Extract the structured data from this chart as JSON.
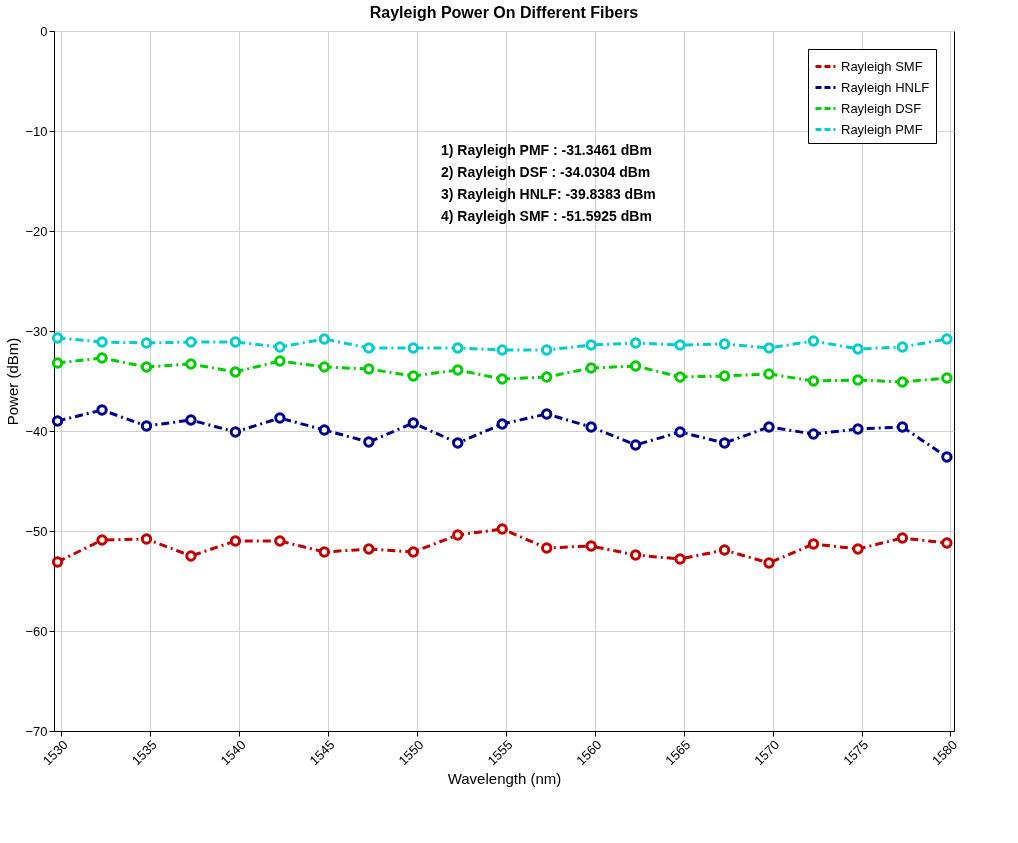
{
  "chart_data": {
    "type": "line",
    "title": "Rayleigh Power On Different Fibers",
    "xlabel": "Wavelength (nm)",
    "ylabel": "Power (dBm)",
    "x": [
      1529.8,
      1532.3,
      1534.8,
      1537.3,
      1539.8,
      1542.3,
      1544.8,
      1547.3,
      1549.8,
      1552.3,
      1554.8,
      1557.3,
      1559.8,
      1562.3,
      1564.8,
      1567.3,
      1569.8,
      1572.3,
      1574.8,
      1577.3,
      1579.8
    ],
    "xlim": [
      1529.6,
      1580.2
    ],
    "xticks": [
      1530,
      1535,
      1540,
      1545,
      1550,
      1555,
      1560,
      1565,
      1570,
      1575,
      1580
    ],
    "ylim": [
      -70,
      0
    ],
    "yticks": [
      -70,
      -60,
      -50,
      -40,
      -30,
      -20,
      -10,
      0
    ],
    "grid": true,
    "legend": "top right",
    "marker": "circle",
    "line_style": "dashed",
    "series": [
      {
        "name": "Rayleigh SMF",
        "color": "#c00000",
        "values": [
          -53.1,
          -50.9,
          -50.8,
          -52.5,
          -51.0,
          -51.0,
          -52.1,
          -51.8,
          -52.1,
          -50.4,
          -49.8,
          -51.7,
          -51.5,
          -52.4,
          -52.8,
          -51.9,
          -53.2,
          -51.3,
          -51.8,
          -50.7,
          -51.2
        ]
      },
      {
        "name": "Rayleigh HNLF",
        "color": "#00008b",
        "values": [
          -39.0,
          -37.9,
          -39.5,
          -38.9,
          -40.1,
          -38.7,
          -39.9,
          -41.1,
          -39.2,
          -41.2,
          -39.3,
          -38.3,
          -39.6,
          -41.4,
          -40.1,
          -41.2,
          -39.6,
          -40.3,
          -39.8,
          -39.6,
          -42.6
        ]
      },
      {
        "name": "Rayleigh DSF",
        "color": "#00cc00",
        "values": [
          -33.2,
          -32.7,
          -33.6,
          -33.3,
          -34.1,
          -33.0,
          -33.6,
          -33.8,
          -34.5,
          -33.9,
          -34.8,
          -34.6,
          -33.7,
          -33.5,
          -34.6,
          -34.5,
          -34.3,
          -35.0,
          -34.9,
          -35.1,
          -34.7
        ]
      },
      {
        "name": "Rayleigh PMF",
        "color": "#00cccc",
        "values": [
          -30.7,
          -31.1,
          -31.2,
          -31.1,
          -31.1,
          -31.6,
          -30.8,
          -31.7,
          -31.7,
          -31.7,
          -31.9,
          -31.9,
          -31.4,
          -31.2,
          -31.4,
          -31.3,
          -31.7,
          -31.0,
          -31.8,
          -31.6,
          -30.8
        ]
      }
    ],
    "annotations": [
      "1) Rayleigh  PMF    : -31.3461 dBm",
      "2) Rayleigh  DSF    : -34.0304 dBm",
      "3) Rayleigh  HNLF: -39.8383 dBm",
      "4) Rayleigh  SMF     : -51.5925 dBm"
    ]
  }
}
